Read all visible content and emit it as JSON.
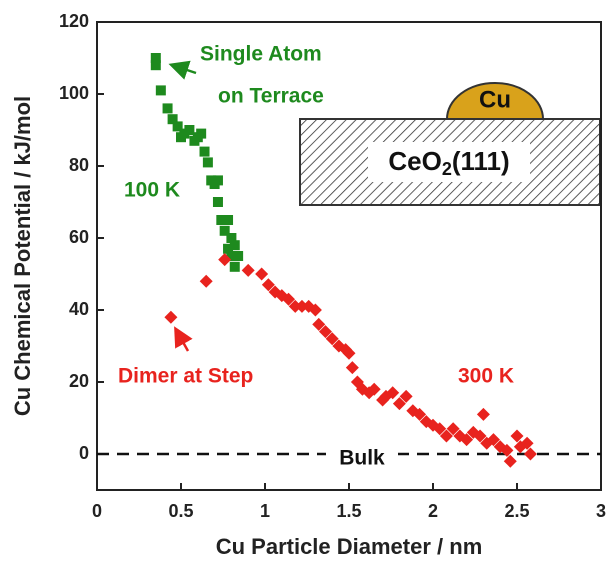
{
  "chart_data": {
    "type": "scatter",
    "xlabel": "Cu Particle Diameter / nm",
    "ylabel": "Cu Chemical Potential / kJ/mol",
    "xlim": [
      0,
      3
    ],
    "ylim": [
      -10,
      120
    ],
    "xticks": [
      0,
      0.5,
      1,
      1.5,
      2,
      2.5,
      3
    ],
    "yticks": [
      0,
      20,
      40,
      60,
      80,
      100,
      120
    ],
    "reference_line": {
      "y": 0,
      "label": "Bulk"
    },
    "series": [
      {
        "name": "100 K",
        "color": "#1e8a1e",
        "marker": "square",
        "x": [
          0.35,
          0.35,
          0.38,
          0.42,
          0.45,
          0.48,
          0.5,
          0.52,
          0.55,
          0.58,
          0.6,
          0.62,
          0.64,
          0.66,
          0.68,
          0.7,
          0.72,
          0.72,
          0.74,
          0.76,
          0.78,
          0.8,
          0.78,
          0.8,
          0.82,
          0.82,
          0.84
        ],
        "values": [
          110,
          108,
          101,
          96,
          93,
          91,
          88,
          89,
          90,
          87,
          88,
          89,
          84,
          81,
          76,
          75,
          76,
          70,
          65,
          62,
          65,
          60,
          57,
          55,
          58,
          52,
          55
        ]
      },
      {
        "name": "300 K",
        "color": "#e8231e",
        "marker": "diamond",
        "x": [
          0.44,
          0.65,
          0.76,
          0.9,
          0.98,
          1.02,
          1.06,
          1.1,
          1.14,
          1.18,
          1.22,
          1.26,
          1.3,
          1.32,
          1.36,
          1.4,
          1.44,
          1.48,
          1.5,
          1.52,
          1.55,
          1.58,
          1.62,
          1.65,
          1.7,
          1.72,
          1.76,
          1.8,
          1.84,
          1.88,
          1.92,
          1.96,
          2.0,
          2.04,
          2.08,
          2.12,
          2.16,
          2.2,
          2.24,
          2.28,
          2.3,
          2.32,
          2.36,
          2.4,
          2.44,
          2.46,
          2.5,
          2.52,
          2.56,
          2.58
        ],
        "values": [
          38,
          48,
          54,
          51,
          50,
          47,
          45,
          44,
          43,
          41,
          41,
          41,
          40,
          36,
          34,
          32,
          30,
          29,
          28,
          24,
          20,
          18,
          17,
          18,
          15,
          16,
          17,
          14,
          16,
          12,
          11,
          9,
          8,
          7,
          5,
          7,
          5,
          4,
          6,
          5,
          11,
          3,
          4,
          2,
          1,
          -2,
          5,
          2,
          3,
          0
        ]
      }
    ],
    "annotations": {
      "single_atom": [
        "Single Atom",
        "on Terrace"
      ],
      "dimer": "Dimer at Step"
    },
    "inset": {
      "particle": "Cu",
      "substrate": {
        "text": "CeO",
        "subscript": "2",
        "suffix": "(111)"
      }
    }
  }
}
